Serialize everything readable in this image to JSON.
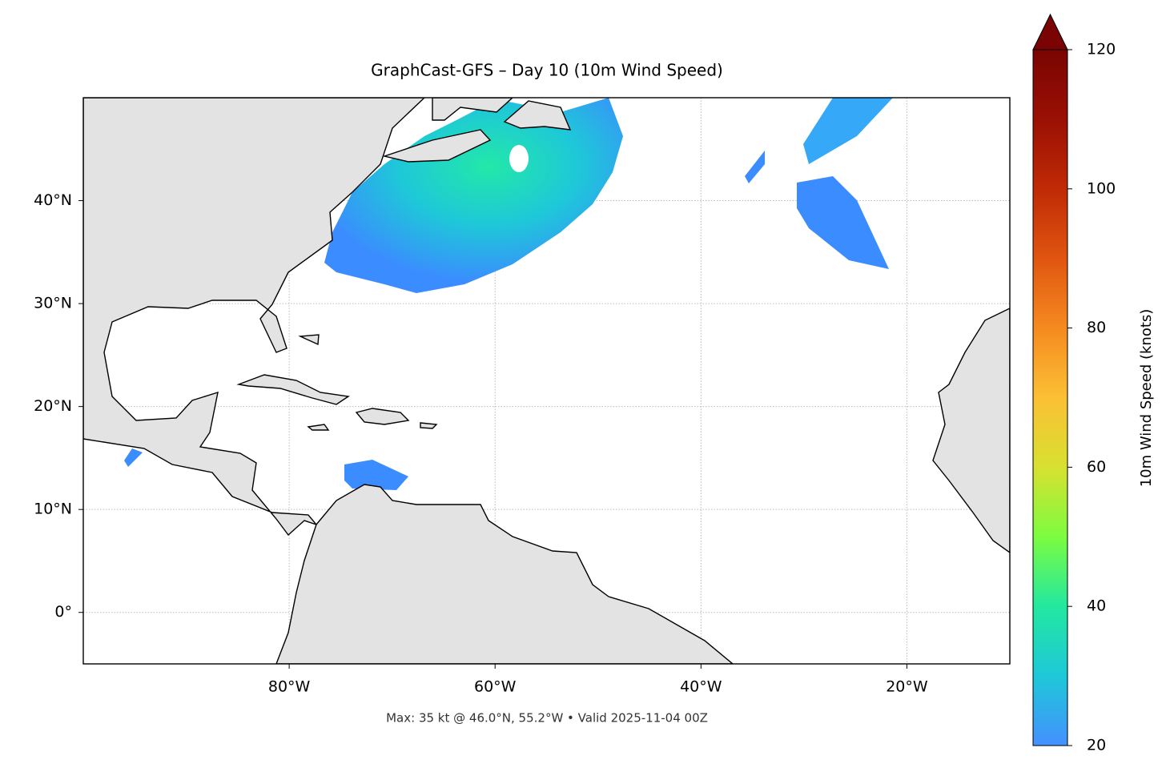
{
  "chart_data": {
    "type": "map",
    "title": "GraphCast-GFS – Day 10 (10m Wind Speed)",
    "note": "Max: 35 kt @ 46.0°N, 55.2°W • Valid 2025-11-04 00Z",
    "xlim": [
      -100,
      -10
    ],
    "ylim": [
      -5,
      50
    ],
    "xticks": [
      {
        "value": -80,
        "label": "80°W"
      },
      {
        "value": -60,
        "label": "60°W"
      },
      {
        "value": -40,
        "label": "40°W"
      },
      {
        "value": -20,
        "label": "20°W"
      }
    ],
    "yticks": [
      {
        "value": 0,
        "label": "0°"
      },
      {
        "value": 10,
        "label": "10°N"
      },
      {
        "value": 20,
        "label": "20°N"
      },
      {
        "value": 30,
        "label": "30°N"
      },
      {
        "value": 40,
        "label": "40°N"
      }
    ],
    "grid": true,
    "colorbar": {
      "label": "10m Wind Speed (knots)",
      "lim": [
        20,
        120
      ],
      "ticks": [
        20,
        40,
        60,
        80,
        100,
        120
      ],
      "colors": [
        "#4490ff",
        "#1ec8d8",
        "#22e8a0",
        "#7cfc40",
        "#d8e030",
        "#fbc035",
        "#f58a20",
        "#e05510",
        "#c02a06",
        "#9a1004",
        "#7a0403"
      ]
    }
  }
}
